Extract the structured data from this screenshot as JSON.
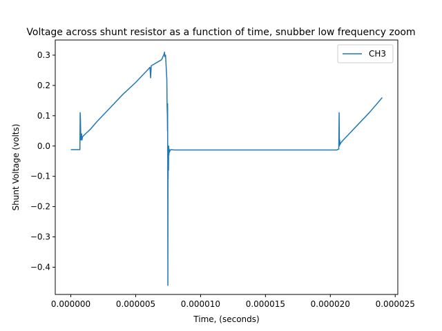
{
  "chart_data": {
    "type": "line",
    "title": "Voltage across shunt resistor as a function of time, snubber low frequency zoom",
    "xlabel": "Time, (seconds)",
    "ylabel": "Shunt Voltage (volts)",
    "xlim": [
      -1.2e-06,
      2.52e-05
    ],
    "ylim": [
      -0.49,
      0.35
    ],
    "x_ticks": [
      0.0,
      5e-06,
      1e-05,
      1.5e-05,
      2e-05,
      2.5e-05
    ],
    "x_tick_labels": [
      "0.000000",
      "0.000005",
      "0.000010",
      "0.000015",
      "0.000020",
      "0.000025"
    ],
    "y_ticks": [
      -0.4,
      -0.3,
      -0.2,
      -0.1,
      0.0,
      0.1,
      0.2,
      0.3
    ],
    "y_tick_labels": [
      "−0.4",
      "−0.3",
      "−0.2",
      "−0.1",
      "0.0",
      "0.1",
      "0.2",
      "0.3"
    ],
    "grid": false,
    "legend_position": "top-right",
    "color": "#1f77b4",
    "series": [
      {
        "name": "CH3",
        "x": [
          0.0,
          3e-07,
          7e-07,
          7.2e-07,
          7.4e-07,
          7.6e-07,
          7.8e-07,
          8e-07,
          8.3e-07,
          8.6e-07,
          9e-07,
          1e-06,
          1.5e-06,
          2e-06,
          3e-06,
          4e-06,
          5e-06,
          6e-06,
          6.1e-06,
          6.15e-06,
          6.2e-06,
          7e-06,
          7.2e-06,
          7.22e-06,
          7.24e-06,
          7.3e-06,
          7.4e-06,
          7.42e-06,
          7.44e-06,
          7.45e-06,
          7.46e-06,
          7.47e-06,
          7.48e-06,
          7.49e-06,
          7.5e-06,
          7.51e-06,
          7.52e-06,
          7.53e-06,
          7.54e-06,
          7.56e-06,
          7.58e-06,
          7.6e-06,
          7.65e-06,
          7.7e-06,
          8e-06,
          1e-05,
          1.2e-05,
          1.5e-05,
          1.8e-05,
          2e-05,
          2.05e-05,
          2.065e-05,
          2.068e-05,
          2.07e-05,
          2.072e-05,
          2.075e-05,
          2.08e-05,
          2.1e-05,
          2.2e-05,
          2.3e-05,
          2.4e-05
        ],
        "y": [
          -0.012,
          -0.012,
          -0.012,
          0.11,
          0.09,
          0.05,
          0.02,
          0.03,
          0.04,
          0.02,
          0.03,
          0.035,
          0.055,
          0.08,
          0.125,
          0.17,
          0.21,
          0.255,
          0.26,
          0.225,
          0.265,
          0.285,
          0.305,
          0.31,
          0.295,
          0.3,
          0.22,
          0.13,
          0.1,
          0.05,
          0.14,
          -0.1,
          -0.46,
          -0.08,
          -0.11,
          -0.02,
          -0.02,
          -0.08,
          0.0,
          -0.03,
          -0.01,
          -0.02,
          -0.015,
          -0.012,
          -0.013,
          -0.013,
          -0.013,
          -0.013,
          -0.013,
          -0.013,
          -0.013,
          -0.01,
          0.11,
          0.0,
          0.02,
          0.005,
          0.01,
          0.02,
          0.065,
          0.11,
          0.16
        ]
      }
    ]
  }
}
